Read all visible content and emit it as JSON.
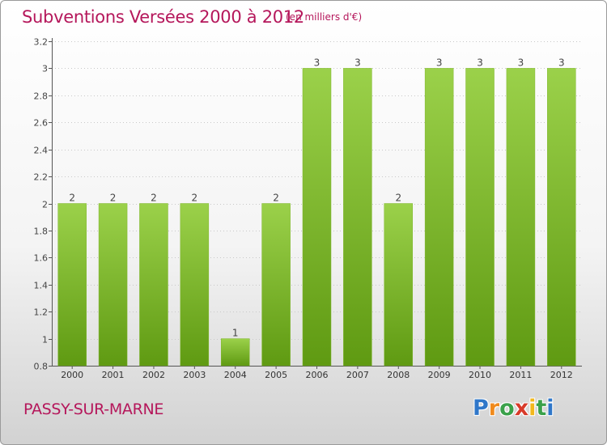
{
  "chart_data": {
    "type": "bar",
    "title": "Subventions Versées 2000 à 2012",
    "subtitle": "(en milliers d'€)",
    "categories": [
      "2000",
      "2001",
      "2002",
      "2003",
      "2004",
      "2005",
      "2006",
      "2007",
      "2008",
      "2009",
      "2010",
      "2011",
      "2012"
    ],
    "values": [
      2,
      2,
      2,
      2,
      1,
      2,
      3,
      3,
      2,
      3,
      3,
      3,
      3
    ],
    "value_labels": [
      "2",
      "2",
      "2",
      "2",
      "1",
      "2",
      "3",
      "3",
      "2",
      "3",
      "3",
      "3",
      "3"
    ],
    "ylim": [
      0.8,
      3.2
    ],
    "yticks": [
      0.8,
      1,
      1.2,
      1.4,
      1.6,
      1.8,
      2,
      2.2,
      2.4,
      2.6,
      2.8,
      3,
      3.2
    ],
    "ytick_labels": [
      "0.8",
      "1",
      "1.2",
      "1.4",
      "1.6",
      "1.8",
      "2",
      "2.2",
      "2.4",
      "2.6",
      "2.8",
      "3",
      "3.2"
    ],
    "grid": true,
    "bar_color_top": "#9bd14a",
    "bar_color_bottom": "#5f9a12"
  },
  "footer": {
    "commune": "PASSY-SUR-MARNE"
  },
  "logo": {
    "letters": [
      "P",
      "r",
      "o",
      "x",
      "i",
      "t",
      "i"
    ],
    "colors": [
      "#2f77c9",
      "#f08a1c",
      "#3aa14a",
      "#d83a2a",
      "#f2b81c",
      "#3aa14a",
      "#2f77c9"
    ]
  }
}
